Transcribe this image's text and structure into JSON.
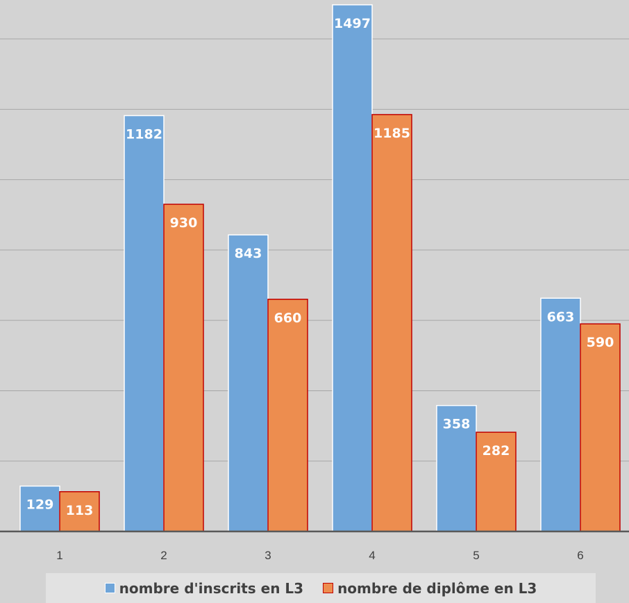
{
  "chart_data": {
    "type": "bar",
    "categories": [
      "1",
      "2",
      "3",
      "4",
      "5",
      "6"
    ],
    "series": [
      {
        "name": "nombre d'inscrits en L3",
        "values": [
          129,
          1182,
          843,
          1497,
          358,
          663
        ],
        "color": "#6fa5d9",
        "border": "#ffffff"
      },
      {
        "name": "nombre de diplôme en L3",
        "values": [
          113,
          930,
          660,
          1185,
          282,
          590
        ],
        "color": "#ed8d4f",
        "border": "#c00000"
      }
    ],
    "ylim": [
      0,
      1500
    ],
    "grid": true,
    "data_labels": true,
    "legend": "bottom"
  },
  "legend": {
    "items": [
      {
        "label": "nombre d'inscrits en L3",
        "color": "#6fa5d9",
        "border": "#ffffff"
      },
      {
        "label": "nombre de diplôme en L3",
        "color": "#ed8d4f",
        "border": "#c00000"
      }
    ]
  }
}
